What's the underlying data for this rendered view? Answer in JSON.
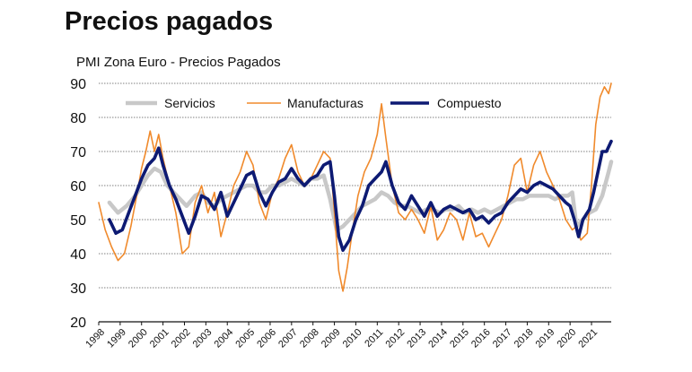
{
  "page": {
    "heading": "Precios pagados"
  },
  "chart_data": {
    "type": "line",
    "title": "PMI Zona Euro - Precios Pagados",
    "xlabel": "",
    "ylabel": "",
    "ylim": [
      20,
      90
    ],
    "yticks": [
      20,
      30,
      40,
      50,
      60,
      70,
      80,
      90
    ],
    "xlim": [
      1998.0,
      2021.92
    ],
    "xticks": [
      "1998",
      "1999",
      "2000",
      "2001",
      "2002",
      "2003",
      "2004",
      "2005",
      "2006",
      "2007",
      "2008",
      "2009",
      "2010",
      "2011",
      "2012",
      "2013",
      "2014",
      "2015",
      "2016",
      "2017",
      "2018",
      "2019",
      "2020",
      "2021"
    ],
    "grid": true,
    "legend_position": "top-left",
    "series": [
      {
        "name": "Servicios",
        "color": "#c8c8c8",
        "x": [
          1998.5,
          1998.9,
          1999.3,
          1999.7,
          2000.0,
          2000.3,
          2000.6,
          2000.9,
          2001.2,
          2001.5,
          2001.8,
          2002.1,
          2002.5,
          2002.8,
          2003.1,
          2003.4,
          2003.7,
          2004.0,
          2004.3,
          2004.6,
          2004.9,
          2005.2,
          2005.5,
          2005.8,
          2006.1,
          2006.4,
          2006.7,
          2007.0,
          2007.3,
          2007.6,
          2007.9,
          2008.2,
          2008.5,
          2008.8,
          2009.1,
          2009.4,
          2009.7,
          2010.0,
          2010.3,
          2010.6,
          2010.9,
          2011.2,
          2011.5,
          2011.8,
          2012.1,
          2012.4,
          2012.7,
          2013.0,
          2013.3,
          2013.6,
          2013.9,
          2014.2,
          2014.5,
          2014.8,
          2015.1,
          2015.4,
          2015.7,
          2016.0,
          2016.3,
          2016.6,
          2016.9,
          2017.2,
          2017.5,
          2017.8,
          2018.1,
          2018.4,
          2018.7,
          2019.0,
          2019.3,
          2019.6,
          2019.9,
          2020.1,
          2020.3,
          2020.6,
          2020.9,
          2021.2,
          2021.5,
          2021.8,
          2021.92
        ],
        "values": [
          55,
          52,
          54,
          57,
          60,
          63,
          65,
          64,
          60,
          58,
          56,
          54,
          57,
          58,
          55,
          54,
          56,
          57,
          58,
          59,
          60,
          60,
          58,
          58,
          60,
          60,
          61,
          62,
          61,
          60,
          62,
          62,
          63,
          56,
          47,
          48,
          50,
          52,
          54,
          55,
          56,
          58,
          57,
          55,
          54,
          54,
          53,
          52,
          53,
          53,
          52,
          53,
          53,
          54,
          52,
          53,
          52,
          53,
          52,
          53,
          54,
          55,
          56,
          56,
          57,
          57,
          57,
          57,
          56,
          57,
          57,
          58,
          48,
          50,
          52,
          53,
          57,
          64,
          67
        ]
      },
      {
        "name": "Manufacturas",
        "color": "#f08a2c",
        "x": [
          1998.0,
          1998.3,
          1998.6,
          1998.9,
          1999.2,
          1999.5,
          1999.8,
          2000.0,
          2000.2,
          2000.4,
          2000.6,
          2000.8,
          2001.0,
          2001.3,
          2001.6,
          2001.9,
          2002.2,
          2002.5,
          2002.8,
          2003.1,
          2003.4,
          2003.7,
          2004.0,
          2004.3,
          2004.6,
          2004.9,
          2005.2,
          2005.5,
          2005.8,
          2006.1,
          2006.4,
          2006.7,
          2007.0,
          2007.3,
          2007.6,
          2007.9,
          2008.2,
          2008.5,
          2008.8,
          2009.0,
          2009.2,
          2009.4,
          2009.6,
          2009.8,
          2010.1,
          2010.4,
          2010.7,
          2011.0,
          2011.2,
          2011.4,
          2011.7,
          2012.0,
          2012.3,
          2012.6,
          2012.9,
          2013.2,
          2013.5,
          2013.8,
          2014.1,
          2014.4,
          2014.7,
          2015.0,
          2015.3,
          2015.6,
          2015.9,
          2016.2,
          2016.5,
          2016.8,
          2017.1,
          2017.4,
          2017.7,
          2018.0,
          2018.3,
          2018.6,
          2018.9,
          2019.2,
          2019.5,
          2019.8,
          2020.1,
          2020.3,
          2020.5,
          2020.8,
          2021.0,
          2021.2,
          2021.4,
          2021.6,
          2021.8,
          2021.92
        ],
        "values": [
          55,
          47,
          42,
          38,
          40,
          48,
          58,
          65,
          70,
          76,
          70,
          75,
          68,
          60,
          52,
          40,
          42,
          55,
          60,
          52,
          58,
          45,
          52,
          60,
          64,
          70,
          66,
          55,
          50,
          58,
          62,
          68,
          72,
          64,
          60,
          62,
          66,
          70,
          68,
          52,
          35,
          29,
          36,
          45,
          57,
          64,
          68,
          75,
          84,
          74,
          60,
          52,
          50,
          53,
          50,
          46,
          54,
          44,
          47,
          52,
          50,
          44,
          52,
          45,
          46,
          42,
          46,
          50,
          57,
          66,
          68,
          58,
          66,
          70,
          64,
          60,
          56,
          50,
          47,
          48,
          44,
          46,
          60,
          78,
          86,
          89,
          87,
          90
        ]
      },
      {
        "name": "Compuesto",
        "color": "#0d1a73",
        "x": [
          1998.5,
          1998.8,
          1999.1,
          1999.4,
          1999.7,
          2000.0,
          2000.3,
          2000.6,
          2000.8,
          2001.0,
          2001.3,
          2001.6,
          2001.9,
          2002.2,
          2002.5,
          2002.8,
          2003.1,
          2003.4,
          2003.7,
          2004.0,
          2004.3,
          2004.6,
          2004.9,
          2005.2,
          2005.5,
          2005.8,
          2006.1,
          2006.4,
          2006.7,
          2007.0,
          2007.3,
          2007.6,
          2007.9,
          2008.2,
          2008.5,
          2008.8,
          2009.0,
          2009.2,
          2009.4,
          2009.7,
          2010.0,
          2010.3,
          2010.6,
          2010.9,
          2011.2,
          2011.4,
          2011.7,
          2012.0,
          2012.3,
          2012.6,
          2012.9,
          2013.2,
          2013.5,
          2013.8,
          2014.1,
          2014.4,
          2014.7,
          2015.0,
          2015.3,
          2015.6,
          2015.9,
          2016.2,
          2016.5,
          2016.8,
          2017.1,
          2017.4,
          2017.7,
          2018.0,
          2018.3,
          2018.6,
          2018.9,
          2019.2,
          2019.5,
          2019.8,
          2020.0,
          2020.2,
          2020.4,
          2020.6,
          2020.9,
          2021.1,
          2021.3,
          2021.5,
          2021.7,
          2021.92
        ],
        "values": [
          50,
          46,
          47,
          52,
          57,
          62,
          66,
          68,
          71,
          66,
          60,
          56,
          51,
          46,
          51,
          57,
          56,
          53,
          58,
          51,
          55,
          59,
          63,
          64,
          58,
          54,
          58,
          61,
          62,
          65,
          62,
          60,
          62,
          63,
          66,
          67,
          57,
          45,
          41,
          44,
          50,
          54,
          60,
          62,
          64,
          67,
          60,
          55,
          53,
          57,
          54,
          51,
          55,
          51,
          53,
          54,
          53,
          52,
          53,
          50,
          51,
          49,
          51,
          52,
          55,
          57,
          59,
          58,
          60,
          61,
          60,
          59,
          57,
          55,
          54,
          50,
          45,
          50,
          53,
          58,
          64,
          70,
          70,
          73
        ]
      }
    ]
  }
}
